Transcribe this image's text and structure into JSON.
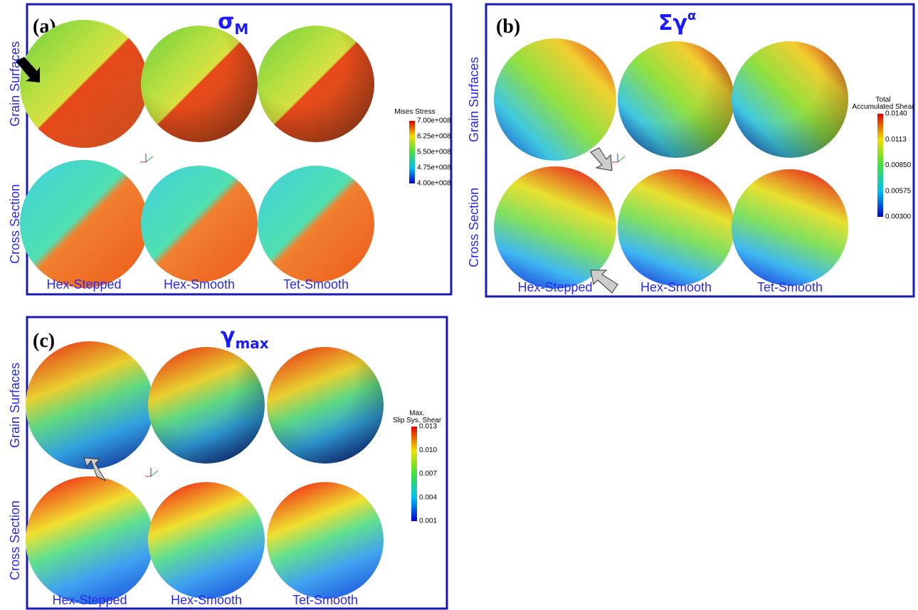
{
  "panels": [
    {
      "label": "(a)",
      "title": {
        "main": "σ",
        "script": "M"
      },
      "row_labels": [
        "Grain Surfaces",
        "Cross Section"
      ],
      "column_labels": [
        "Hex-Stepped",
        "Hex-Smooth",
        "Tet-Smooth"
      ],
      "colorbar": {
        "title": [
          "Mises Stress"
        ],
        "ticks": [
          "7.00e+008",
          "6.25e+008",
          "5.50e+008",
          "4.75e+008",
          "4.00e+008"
        ]
      }
    },
    {
      "label": "(b)",
      "title": {
        "main": "Σγ",
        "script": "α"
      },
      "row_labels": [
        "Grain Surfaces",
        "Cross Section"
      ],
      "column_labels": [
        "Hex-Stepped",
        "Hex-Smooth",
        "Tet-Smooth"
      ],
      "colorbar": {
        "title": [
          "Total",
          "Accumulated Shear"
        ],
        "ticks": [
          "0.0140",
          "0.0113",
          "0.00850",
          "0.00575",
          "0.00300"
        ]
      }
    },
    {
      "label": "(c)",
      "title": {
        "main": "γ",
        "script": "max"
      },
      "row_labels": [
        "Grain Surfaces",
        "Cross Section"
      ],
      "column_labels": [
        "Hex-Stepped",
        "Hex-Smooth",
        "Tet-Smooth"
      ],
      "colorbar": {
        "title": [
          "Max.",
          "Slip Sys. Shear"
        ],
        "ticks": [
          "0.013",
          "0.010",
          "0.007",
          "0.004",
          "0.001"
        ]
      }
    }
  ]
}
